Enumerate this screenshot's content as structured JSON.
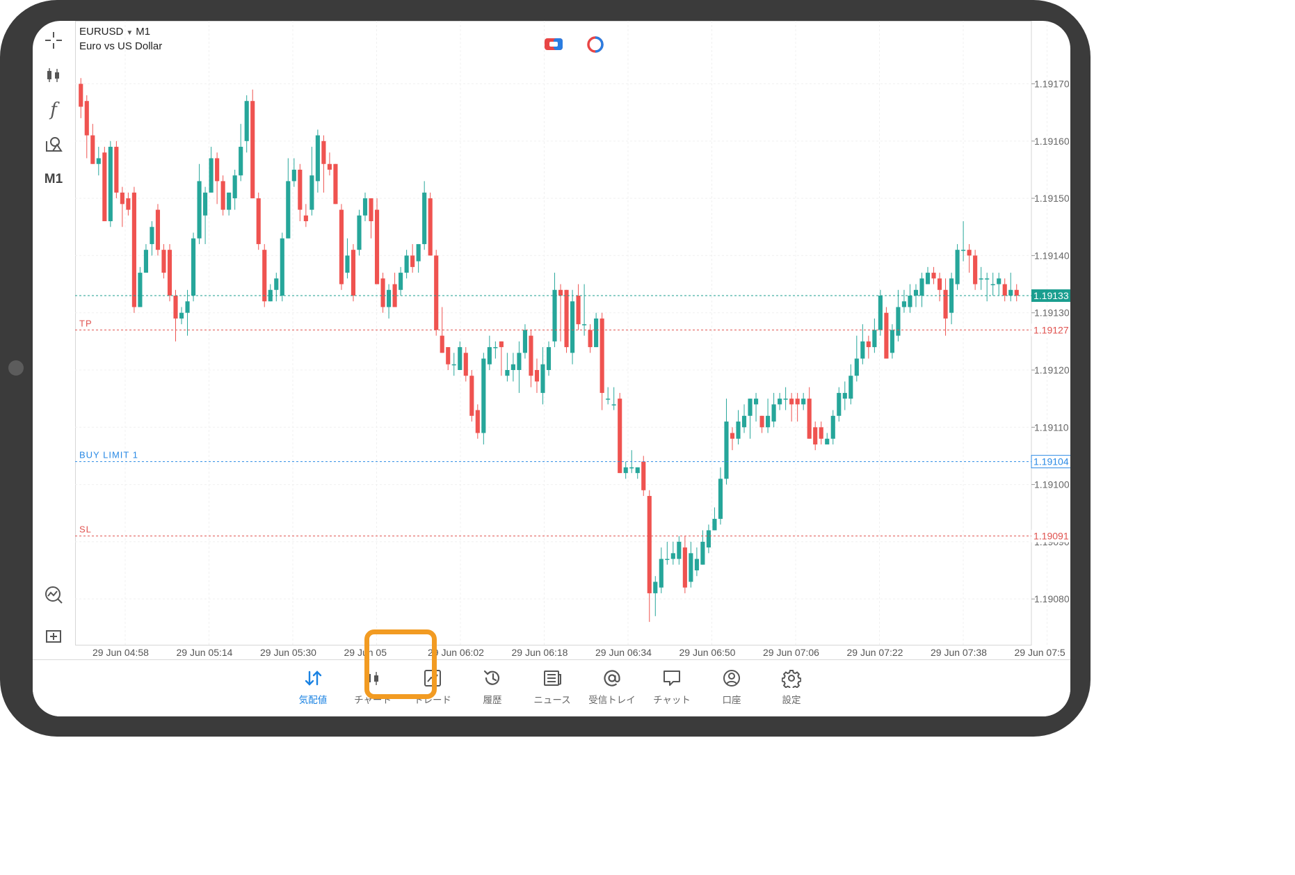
{
  "symbol": {
    "name": "EURUSD",
    "timeframe": "M1",
    "description": "Euro vs US Dollar"
  },
  "toolbar": {
    "tools": [
      "crosshair-icon",
      "chart-type-icon",
      "indicators-icon",
      "objects-icon"
    ],
    "timeframe_label": "M1",
    "bottom_tools": [
      "signals-icon",
      "new-order-icon"
    ]
  },
  "chart_data": {
    "type": "candlestick",
    "y_ticks": [
      "1.19170",
      "1.19160",
      "1.19150",
      "1.19140",
      "1.19130",
      "1.19120",
      "1.19110",
      "1.19100",
      "1.19090",
      "1.19080"
    ],
    "x_ticks": [
      "29 Jun 04:58",
      "29 Jun 05:14",
      "29 Jun 05:30",
      "29 Jun 05",
      "29 Jun 06:02",
      "29 Jun 06:18",
      "29 Jun 06:34",
      "29 Jun 06:50",
      "29 Jun 07:06",
      "29 Jun 07:22",
      "29 Jun 07:38",
      "29 Jun 07:5"
    ],
    "ylim": [
      1.19072,
      1.19181
    ],
    "grid": true,
    "price_lines": [
      {
        "label": "",
        "value": "1.19133",
        "color": "#1a9e8f"
      },
      {
        "label": "TP",
        "value": "1.19127",
        "color": "#e0524f"
      },
      {
        "label": "BUY LIMIT 1",
        "value": "1.19104",
        "color": "#2a8ae5"
      },
      {
        "label": "SL",
        "value": "1.19091",
        "color": "#e0524f"
      }
    ],
    "up_color": "#26a69a",
    "down_color": "#ef5350",
    "candles": [
      [
        1.1917,
        1.19166,
        1.19171,
        1.19164
      ],
      [
        1.19167,
        1.19161,
        1.19168,
        1.19157
      ],
      [
        1.19161,
        1.19156,
        1.19163,
        1.19156
      ],
      [
        1.19156,
        1.19157,
        1.19159,
        1.19154
      ],
      [
        1.19158,
        1.19146,
        1.19159,
        1.19146
      ],
      [
        1.19146,
        1.19159,
        1.1916,
        1.19145
      ],
      [
        1.19159,
        1.19151,
        1.1916,
        1.1915
      ],
      [
        1.19151,
        1.19149,
        1.19152,
        1.19145
      ],
      [
        1.1915,
        1.19148,
        1.19151,
        1.19147
      ],
      [
        1.19151,
        1.19131,
        1.19152,
        1.1913
      ],
      [
        1.19131,
        1.19137,
        1.19138,
        1.19131
      ],
      [
        1.19137,
        1.19141,
        1.19142,
        1.19137
      ],
      [
        1.19142,
        1.19145,
        1.19146,
        1.1914
      ],
      [
        1.19148,
        1.19141,
        1.19149,
        1.1914
      ],
      [
        1.19141,
        1.19137,
        1.19142,
        1.19136
      ],
      [
        1.19141,
        1.19133,
        1.19142,
        1.19132
      ],
      [
        1.19133,
        1.19129,
        1.19134,
        1.19125
      ],
      [
        1.19129,
        1.1913,
        1.19131,
        1.19128
      ],
      [
        1.1913,
        1.19132,
        1.19134,
        1.19126
      ],
      [
        1.19133,
        1.19143,
        1.19144,
        1.19132
      ],
      [
        1.19143,
        1.19153,
        1.19156,
        1.19142
      ],
      [
        1.19147,
        1.19151,
        1.19152,
        1.19142
      ],
      [
        1.19151,
        1.19157,
        1.19159,
        1.19151
      ],
      [
        1.19157,
        1.19153,
        1.19158,
        1.19149
      ],
      [
        1.19153,
        1.19148,
        1.19154,
        1.19147
      ],
      [
        1.19148,
        1.19151,
        1.19151,
        1.19147
      ],
      [
        1.1915,
        1.19154,
        1.19155,
        1.19148
      ],
      [
        1.19154,
        1.19159,
        1.19163,
        1.19153
      ],
      [
        1.1916,
        1.19167,
        1.19168,
        1.19158
      ],
      [
        1.19167,
        1.1915,
        1.19169,
        1.1915
      ],
      [
        1.1915,
        1.19142,
        1.19151,
        1.19141
      ],
      [
        1.19141,
        1.19132,
        1.19142,
        1.19131
      ],
      [
        1.19132,
        1.19134,
        1.19135,
        1.19132
      ],
      [
        1.19134,
        1.19136,
        1.19137,
        1.19132
      ],
      [
        1.19133,
        1.19143,
        1.19144,
        1.19132
      ],
      [
        1.19143,
        1.19153,
        1.19157,
        1.19143
      ],
      [
        1.19153,
        1.19155,
        1.19157,
        1.19152
      ],
      [
        1.19155,
        1.19148,
        1.19156,
        1.19146
      ],
      [
        1.19147,
        1.19146,
        1.19149,
        1.19145
      ],
      [
        1.19148,
        1.19154,
        1.19159,
        1.19147
      ],
      [
        1.19153,
        1.19161,
        1.19162,
        1.19151
      ],
      [
        1.1916,
        1.19156,
        1.19161,
        1.19151
      ],
      [
        1.19156,
        1.19155,
        1.19158,
        1.19154
      ],
      [
        1.19156,
        1.19149,
        1.19156,
        1.19149
      ],
      [
        1.19148,
        1.19135,
        1.19149,
        1.19134
      ],
      [
        1.19137,
        1.1914,
        1.19143,
        1.19136
      ],
      [
        1.19141,
        1.19133,
        1.19142,
        1.19132
      ],
      [
        1.19141,
        1.19147,
        1.19148,
        1.1914
      ],
      [
        1.19147,
        1.1915,
        1.19151,
        1.19146
      ],
      [
        1.1915,
        1.19146,
        1.1915,
        1.19143
      ],
      [
        1.19148,
        1.19135,
        1.1915,
        1.19135
      ],
      [
        1.19136,
        1.19131,
        1.19137,
        1.1913
      ],
      [
        1.19131,
        1.19134,
        1.19135,
        1.19129
      ],
      [
        1.19135,
        1.19131,
        1.19137,
        1.19131
      ],
      [
        1.19134,
        1.19137,
        1.19138,
        1.19133
      ],
      [
        1.19137,
        1.1914,
        1.19141,
        1.19136
      ],
      [
        1.1914,
        1.19138,
        1.19142,
        1.19137
      ],
      [
        1.19139,
        1.19142,
        1.19142,
        1.19137
      ],
      [
        1.19142,
        1.19151,
        1.19153,
        1.19141
      ],
      [
        1.1915,
        1.1914,
        1.19151,
        1.1914
      ],
      [
        1.1914,
        1.19127,
        1.19141,
        1.19126
      ],
      [
        1.19126,
        1.19123,
        1.19131,
        1.19123
      ],
      [
        1.19124,
        1.19121,
        1.19124,
        1.1912
      ],
      [
        1.19121,
        1.19121,
        1.19123,
        1.19119
      ],
      [
        1.1912,
        1.19124,
        1.19125,
        1.1912
      ],
      [
        1.19123,
        1.19119,
        1.19124,
        1.19118
      ],
      [
        1.19119,
        1.19112,
        1.1912,
        1.19111
      ],
      [
        1.19113,
        1.19109,
        1.19114,
        1.19108
      ],
      [
        1.19109,
        1.19122,
        1.19123,
        1.19107
      ],
      [
        1.19121,
        1.19124,
        1.19126,
        1.1912
      ],
      [
        1.19124,
        1.19124,
        1.19125,
        1.19122
      ],
      [
        1.19125,
        1.19124,
        1.19125,
        1.19119
      ],
      [
        1.19119,
        1.1912,
        1.19123,
        1.19118
      ],
      [
        1.1912,
        1.19121,
        1.19123,
        1.19118
      ],
      [
        1.1912,
        1.19123,
        1.19125,
        1.19116
      ],
      [
        1.19123,
        1.19127,
        1.19128,
        1.19122
      ],
      [
        1.19126,
        1.19119,
        1.19127,
        1.19117
      ],
      [
        1.1912,
        1.19118,
        1.19122,
        1.19116
      ],
      [
        1.19116,
        1.19121,
        1.19124,
        1.19114
      ],
      [
        1.1912,
        1.19124,
        1.19125,
        1.19119
      ],
      [
        1.19125,
        1.19134,
        1.19137,
        1.19124
      ],
      [
        1.19134,
        1.19133,
        1.19135,
        1.19125
      ],
      [
        1.19134,
        1.19124,
        1.19134,
        1.19123
      ],
      [
        1.19123,
        1.19132,
        1.19134,
        1.19121
      ],
      [
        1.19133,
        1.19128,
        1.19135,
        1.19127
      ],
      [
        1.19128,
        1.19128,
        1.19135,
        1.19126
      ],
      [
        1.19127,
        1.19124,
        1.19128,
        1.19123
      ],
      [
        1.19124,
        1.19129,
        1.1913,
        1.19124
      ],
      [
        1.19129,
        1.19116,
        1.1913,
        1.19113
      ],
      [
        1.19115,
        1.19115,
        1.19117,
        1.19114
      ],
      [
        1.19114,
        1.19114,
        1.19117,
        1.19113
      ],
      [
        1.19115,
        1.19102,
        1.19116,
        1.19102
      ],
      [
        1.19102,
        1.19103,
        1.19104,
        1.19101
      ],
      [
        1.19103,
        1.19103,
        1.19106,
        1.19102
      ],
      [
        1.19102,
        1.19103,
        1.19103,
        1.19101
      ],
      [
        1.19104,
        1.19099,
        1.19105,
        1.19098
      ],
      [
        1.19098,
        1.19081,
        1.19099,
        1.19076
      ],
      [
        1.19081,
        1.19083,
        1.19084,
        1.19077
      ],
      [
        1.19082,
        1.19087,
        1.19089,
        1.19081
      ],
      [
        1.19087,
        1.19087,
        1.1909,
        1.19086
      ],
      [
        1.19087,
        1.19088,
        1.1909,
        1.19086
      ],
      [
        1.19087,
        1.1909,
        1.19091,
        1.19086
      ],
      [
        1.19089,
        1.19082,
        1.19091,
        1.19081
      ],
      [
        1.19083,
        1.19088,
        1.1909,
        1.19082
      ],
      [
        1.19085,
        1.19087,
        1.19089,
        1.19084
      ],
      [
        1.19086,
        1.1909,
        1.19092,
        1.19086
      ],
      [
        1.19089,
        1.19092,
        1.19093,
        1.19088
      ],
      [
        1.19092,
        1.19094,
        1.19096,
        1.19092
      ],
      [
        1.19094,
        1.19101,
        1.19103,
        1.19093
      ],
      [
        1.19101,
        1.19111,
        1.19115,
        1.191
      ],
      [
        1.19109,
        1.19108,
        1.1911,
        1.19106
      ],
      [
        1.19108,
        1.19111,
        1.19113,
        1.19107
      ],
      [
        1.1911,
        1.19112,
        1.19114,
        1.19109
      ],
      [
        1.19112,
        1.19115,
        1.19115,
        1.19108
      ],
      [
        1.19114,
        1.19115,
        1.19116,
        1.19111
      ],
      [
        1.19112,
        1.1911,
        1.19112,
        1.19109
      ],
      [
        1.1911,
        1.19112,
        1.19115,
        1.19109
      ],
      [
        1.19111,
        1.19114,
        1.19116,
        1.1911
      ],
      [
        1.19114,
        1.19115,
        1.19116,
        1.19113
      ],
      [
        1.19115,
        1.19115,
        1.19117,
        1.19113
      ],
      [
        1.19115,
        1.19114,
        1.19116,
        1.19111
      ],
      [
        1.19115,
        1.19114,
        1.19116,
        1.19111
      ],
      [
        1.19114,
        1.19115,
        1.19116,
        1.19113
      ],
      [
        1.19115,
        1.19108,
        1.19117,
        1.19108
      ],
      [
        1.1911,
        1.19107,
        1.19111,
        1.19106
      ],
      [
        1.1911,
        1.19108,
        1.19111,
        1.19107
      ],
      [
        1.19107,
        1.19108,
        1.19109,
        1.19107
      ],
      [
        1.19108,
        1.19112,
        1.19113,
        1.19107
      ],
      [
        1.19112,
        1.19116,
        1.19117,
        1.19111
      ],
      [
        1.19115,
        1.19116,
        1.19118,
        1.19113
      ],
      [
        1.19115,
        1.19119,
        1.19121,
        1.19114
      ],
      [
        1.19119,
        1.19122,
        1.19126,
        1.19118
      ],
      [
        1.19122,
        1.19125,
        1.19128,
        1.19121
      ],
      [
        1.19125,
        1.19124,
        1.19126,
        1.19122
      ],
      [
        1.19124,
        1.19127,
        1.19129,
        1.19123
      ],
      [
        1.19127,
        1.19133,
        1.19134,
        1.19126
      ],
      [
        1.1913,
        1.19122,
        1.19131,
        1.19122
      ],
      [
        1.19123,
        1.19127,
        1.19128,
        1.19122
      ],
      [
        1.19126,
        1.19131,
        1.19134,
        1.19125
      ],
      [
        1.19131,
        1.19132,
        1.19134,
        1.1913
      ],
      [
        1.19131,
        1.19133,
        1.19135,
        1.1913
      ],
      [
        1.19133,
        1.19134,
        1.19135,
        1.19131
      ],
      [
        1.19133,
        1.19136,
        1.19137,
        1.19131
      ],
      [
        1.19135,
        1.19137,
        1.19138,
        1.19135
      ],
      [
        1.19137,
        1.19136,
        1.19138,
        1.19135
      ],
      [
        1.19136,
        1.19134,
        1.19137,
        1.19132
      ],
      [
        1.19134,
        1.19129,
        1.19136,
        1.19126
      ],
      [
        1.1913,
        1.19136,
        1.19137,
        1.19128
      ],
      [
        1.19135,
        1.19141,
        1.19142,
        1.19134
      ],
      [
        1.19141,
        1.19141,
        1.19146,
        1.19139
      ],
      [
        1.19141,
        1.1914,
        1.19142,
        1.19137
      ],
      [
        1.1914,
        1.19135,
        1.19141,
        1.19134
      ],
      [
        1.19136,
        1.19136,
        1.19138,
        1.19134
      ],
      [
        1.19136,
        1.19136,
        1.19137,
        1.19132
      ],
      [
        1.19135,
        1.19135,
        1.19137,
        1.19133
      ],
      [
        1.19135,
        1.19136,
        1.19137,
        1.19133
      ],
      [
        1.19135,
        1.19133,
        1.19136,
        1.19132
      ],
      [
        1.19133,
        1.19134,
        1.19137,
        1.19132
      ],
      [
        1.19134,
        1.19133,
        1.19135,
        1.19132
      ]
    ]
  },
  "badges": [
    {
      "name": "one-click-trading-icon",
      "color": "#e84545"
    },
    {
      "name": "signal-status-icon",
      "color": "#e84545"
    }
  ],
  "nav": {
    "items": [
      {
        "label": "気配値",
        "icon": "quotes-icon",
        "active": true
      },
      {
        "label": "チャート",
        "icon": "chart-icon",
        "active": false
      },
      {
        "label": "トレード",
        "icon": "trade-icon",
        "active": false,
        "highlighted": true
      },
      {
        "label": "履歴",
        "icon": "history-icon",
        "active": false
      },
      {
        "label": "ニュース",
        "icon": "news-icon",
        "active": false
      },
      {
        "label": "受信トレイ",
        "icon": "mailbox-icon",
        "active": false
      },
      {
        "label": "チャット",
        "icon": "chat-icon",
        "active": false
      },
      {
        "label": "口座",
        "icon": "account-icon",
        "active": false
      },
      {
        "label": "設定",
        "icon": "settings-icon",
        "active": false
      }
    ],
    "active_color": "#1a82e2",
    "highlight_color": "#f29b22"
  }
}
